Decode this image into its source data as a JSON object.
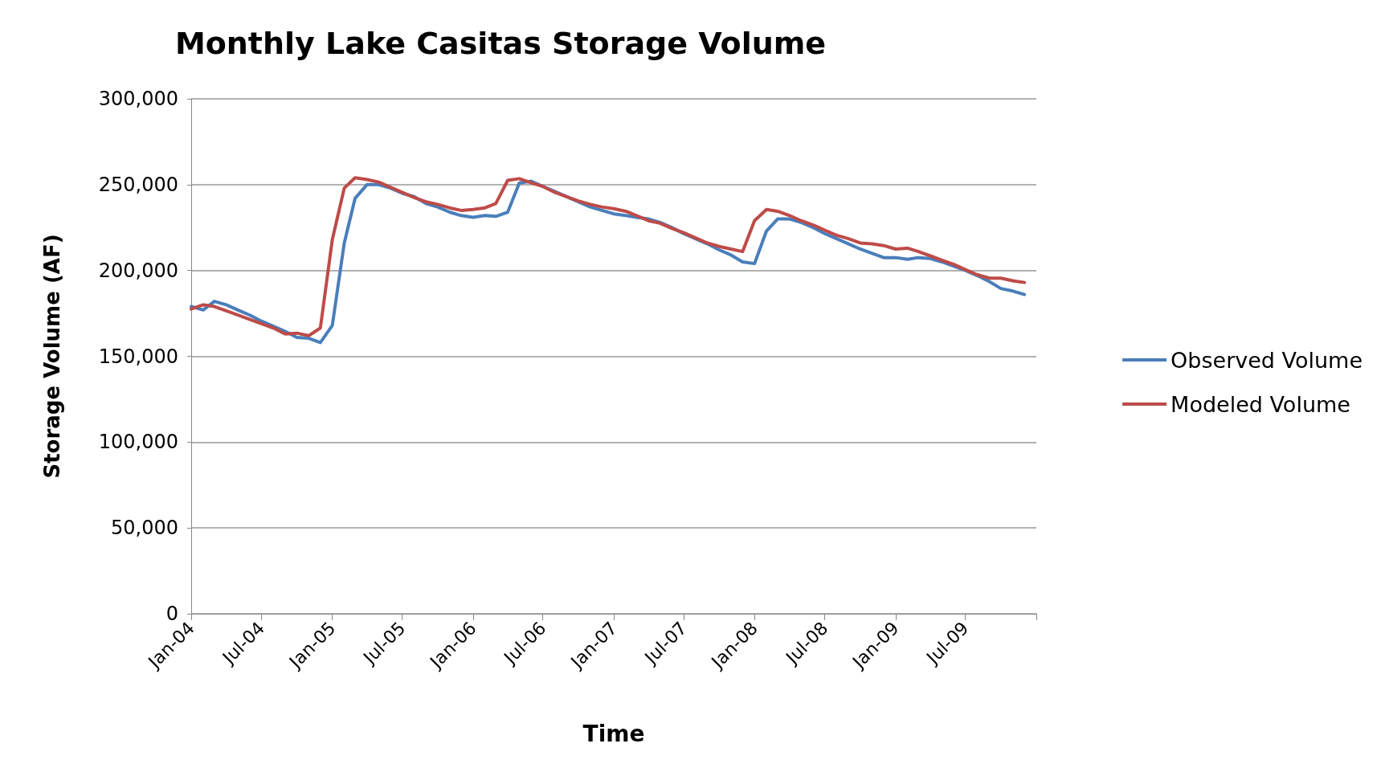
{
  "chart_data": {
    "type": "line",
    "title": "Monthly Lake Casitas Storage Volume",
    "xlabel": "Time",
    "ylabel": "Storage Volume (AF)",
    "x": [
      "2004-01",
      "2004-02",
      "2004-03",
      "2004-04",
      "2004-05",
      "2004-06",
      "2004-07",
      "2004-08",
      "2004-09",
      "2004-10",
      "2004-11",
      "2004-12",
      "2005-01",
      "2005-02",
      "2005-03",
      "2005-04",
      "2005-05",
      "2005-06",
      "2005-07",
      "2005-08",
      "2005-09",
      "2005-10",
      "2005-11",
      "2005-12",
      "2006-01",
      "2006-02",
      "2006-03",
      "2006-04",
      "2006-05",
      "2006-06",
      "2006-07",
      "2006-08",
      "2006-09",
      "2006-10",
      "2006-11",
      "2006-12",
      "2007-01",
      "2007-02",
      "2007-03",
      "2007-04",
      "2007-05",
      "2007-06",
      "2007-07",
      "2007-08",
      "2007-09",
      "2007-10",
      "2007-11",
      "2007-12",
      "2008-01",
      "2008-02",
      "2008-03",
      "2008-04",
      "2008-05",
      "2008-06",
      "2008-07",
      "2008-08",
      "2008-09",
      "2008-10",
      "2008-11",
      "2008-12",
      "2009-01",
      "2009-02",
      "2009-03",
      "2009-04",
      "2009-05",
      "2009-06",
      "2009-07",
      "2009-08",
      "2009-09",
      "2009-10",
      "2009-11",
      "2009-12"
    ],
    "series": [
      {
        "name": "Observed Volume",
        "color": "#4a7ebb",
        "values": [
          179000,
          177000,
          182000,
          180000,
          177000,
          174000,
          170500,
          167500,
          164500,
          161000,
          160500,
          158000,
          168000,
          216000,
          242000,
          250000,
          250000,
          248000,
          245000,
          243000,
          239000,
          237000,
          234000,
          232000,
          231000,
          232000,
          231500,
          234000,
          251000,
          252000,
          249000,
          246000,
          243000,
          240000,
          237000,
          235000,
          233000,
          232000,
          231000,
          230000,
          228000,
          225000,
          221500,
          218500,
          215500,
          212000,
          209000,
          205000,
          204000,
          223000,
          230000,
          230000,
          228000,
          225000,
          221500,
          218500,
          215500,
          212500,
          210000,
          207500,
          207500,
          206500,
          207500,
          207000,
          205000,
          202500,
          200000,
          197000,
          193500,
          189500,
          188000,
          186000
        ]
      },
      {
        "name": "Modeled Volume",
        "color": "#be4b48",
        "values": [
          177500,
          180000,
          179000,
          176500,
          174000,
          171500,
          169000,
          166500,
          163000,
          163500,
          162000,
          166500,
          218000,
          248000,
          254000,
          253000,
          251500,
          248500,
          245500,
          242500,
          240000,
          238500,
          236500,
          235000,
          235500,
          236500,
          239000,
          252500,
          253500,
          251000,
          249000,
          245500,
          243000,
          240500,
          238500,
          237000,
          236000,
          234500,
          232000,
          229000,
          227500,
          224500,
          222000,
          219000,
          216000,
          214000,
          212500,
          211000,
          229000,
          235500,
          234500,
          232000,
          229000,
          226500,
          223500,
          220500,
          218500,
          216000,
          215500,
          214500,
          212500,
          213000,
          211000,
          208500,
          206000,
          203500,
          200500,
          197500,
          195500,
          195500,
          194000,
          193000
        ]
      }
    ],
    "xlim": [
      "2004-01",
      "2010-01"
    ],
    "xticks": [
      {
        "value": "2004-01",
        "label": "Jan-04"
      },
      {
        "value": "2004-07",
        "label": "Jul-04"
      },
      {
        "value": "2005-01",
        "label": "Jan-05"
      },
      {
        "value": "2005-07",
        "label": "Jul-05"
      },
      {
        "value": "2006-01",
        "label": "Jan-06"
      },
      {
        "value": "2006-07",
        "label": "Jul-06"
      },
      {
        "value": "2007-01",
        "label": "Jan-07"
      },
      {
        "value": "2007-07",
        "label": "Jul-07"
      },
      {
        "value": "2008-01",
        "label": "Jan-08"
      },
      {
        "value": "2008-07",
        "label": "Jul-08"
      },
      {
        "value": "2009-01",
        "label": "Jan-09"
      },
      {
        "value": "2009-07",
        "label": "Jul-09"
      },
      {
        "value": "2010-01",
        "label": null
      }
    ],
    "ylim": [
      0,
      300000
    ],
    "yticks": [
      {
        "value": 0,
        "label": "0"
      },
      {
        "value": 50000,
        "label": "50,000"
      },
      {
        "value": 100000,
        "label": "100,000"
      },
      {
        "value": 150000,
        "label": "150,000"
      },
      {
        "value": 200000,
        "label": "200,000"
      },
      {
        "value": 250000,
        "label": "250,000"
      },
      {
        "value": 300000,
        "label": "300,000"
      }
    ],
    "grid": "y",
    "legend": "right",
    "marker": "none",
    "line_style": "solid"
  }
}
